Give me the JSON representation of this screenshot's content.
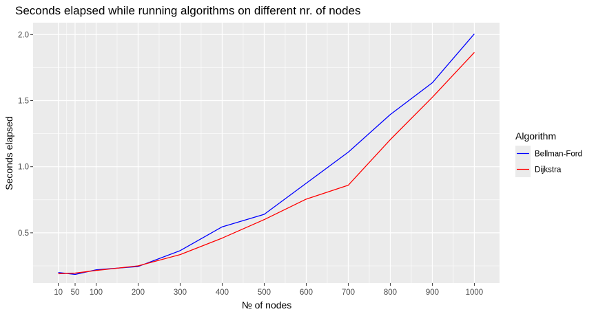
{
  "chart_data": {
    "type": "line",
    "title": "Seconds elapsed while running algorithms on different nr. of nodes",
    "xlabel": "№ of nodes",
    "ylabel": "Seconds elapsed",
    "x": [
      10,
      50,
      100,
      200,
      300,
      400,
      500,
      600,
      700,
      800,
      900,
      1000
    ],
    "xticks": [
      10,
      50,
      100,
      200,
      300,
      400,
      500,
      600,
      700,
      800,
      900,
      1000
    ],
    "yticks": [
      0.5,
      1.0,
      1.5,
      2.0
    ],
    "ytick_labels": [
      "0.5",
      "1.0",
      "1.5",
      "2.0"
    ],
    "xlim": [
      -50,
      1060
    ],
    "ylim": [
      0.12,
      2.09
    ],
    "grid": true,
    "legend_title": "Algorithm",
    "legend_position": "right",
    "series": [
      {
        "name": "Bellman-Ford",
        "color": "#0000ff",
        "values": [
          0.2,
          0.185,
          0.22,
          0.245,
          0.365,
          0.545,
          0.64,
          0.875,
          1.11,
          1.395,
          1.635,
          2.005
        ]
      },
      {
        "name": "Dijkstra",
        "color": "#ff0000",
        "values": [
          0.19,
          0.195,
          0.215,
          0.25,
          0.335,
          0.46,
          0.6,
          0.755,
          0.86,
          1.205,
          1.525,
          1.865
        ]
      }
    ]
  }
}
